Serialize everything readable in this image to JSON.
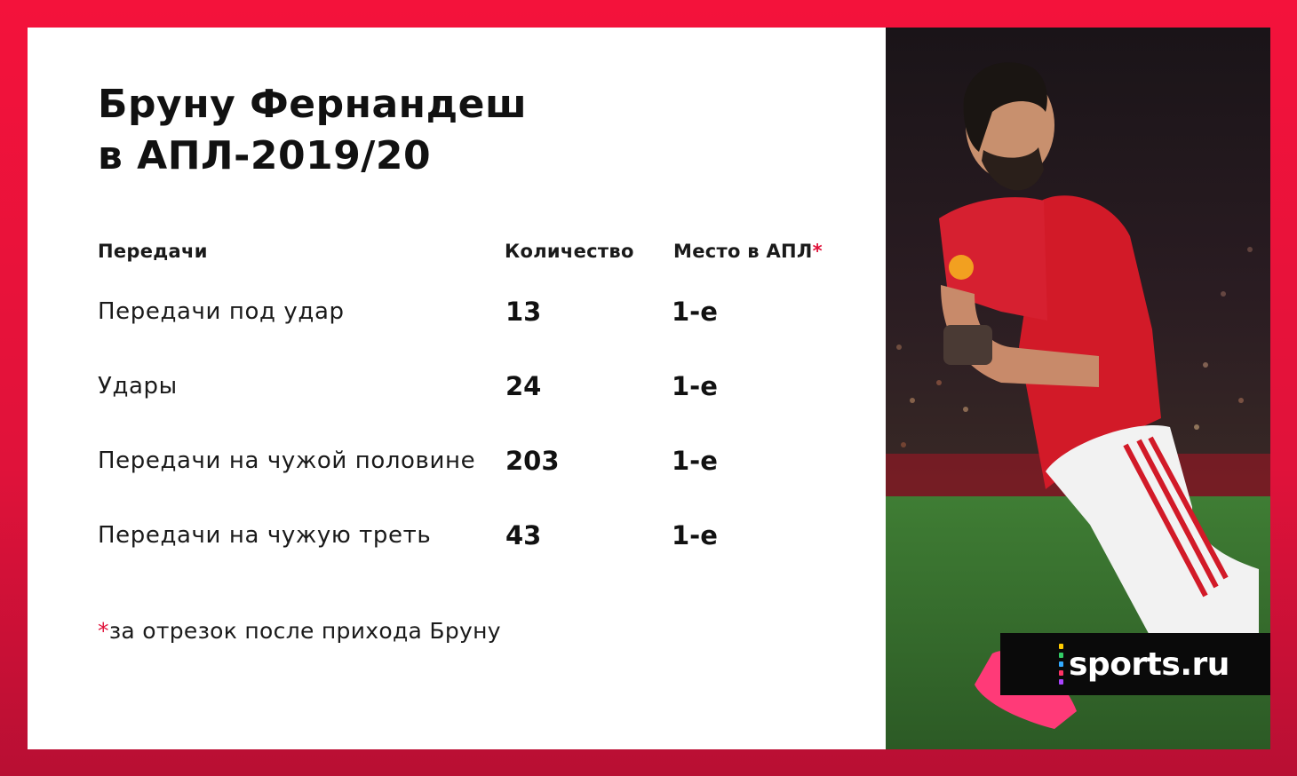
{
  "title": {
    "line1": "Бруну Фернандеш",
    "line2": "в АПЛ-2019/20"
  },
  "table": {
    "headers": {
      "category": "Передачи",
      "count": "Количество",
      "place": "Место в АПЛ",
      "place_mark": "*"
    },
    "rows": [
      {
        "label": "Передачи под удар",
        "value": "13",
        "place": "1-е"
      },
      {
        "label": "Удары",
        "value": "24",
        "place": "1-е"
      },
      {
        "label": "Передачи на чужой половине",
        "value": "203",
        "place": "1-е"
      },
      {
        "label": "Передачи на чужую треть",
        "value": "43",
        "place": "1-е"
      }
    ]
  },
  "footnote": {
    "mark": "*",
    "text": "за отрезок после прихода Бруну"
  },
  "brand": {
    "logo_text": "sports.ru",
    "dot_colors": [
      "#ffcc00",
      "#33cc66",
      "#33aaff",
      "#ff3366",
      "#aa44ff"
    ]
  },
  "colors": {
    "accent": "#e0123a",
    "background_frame": "#f4123b"
  }
}
